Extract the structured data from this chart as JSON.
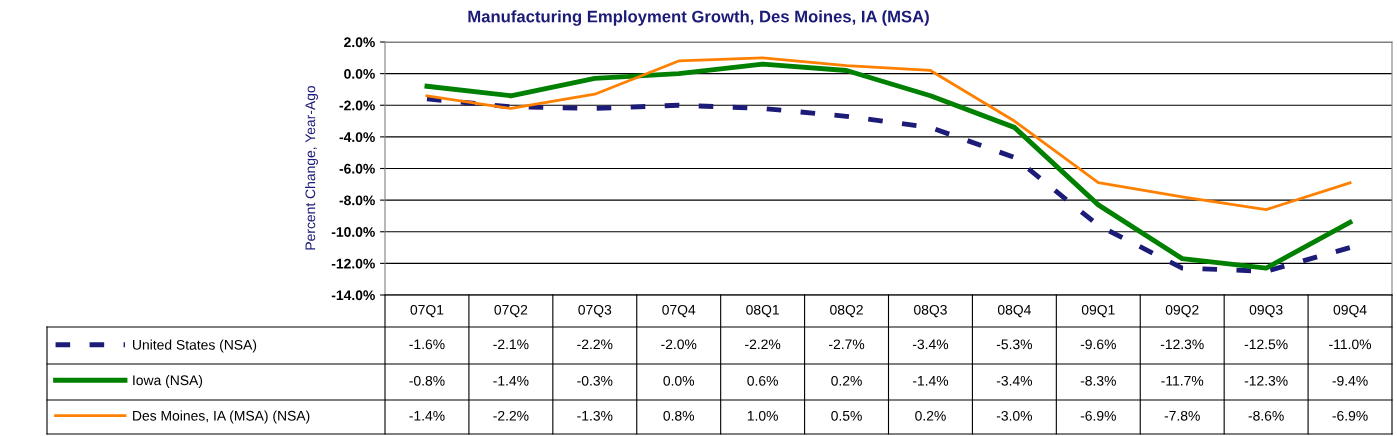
{
  "chart_data": {
    "type": "line",
    "title": "Manufacturing Employment Growth, Des Moines, IA (MSA)",
    "ylabel": "Percent Change, Year-Ago",
    "categories": [
      "07Q1",
      "07Q2",
      "07Q3",
      "07Q4",
      "08Q1",
      "08Q2",
      "08Q3",
      "08Q4",
      "09Q1",
      "09Q2",
      "09Q3",
      "09Q4"
    ],
    "series": [
      {
        "name": "United States (NSA)",
        "color": "#1c1c78",
        "line_style": "dashed",
        "values": [
          -1.6,
          -2.1,
          -2.2,
          -2.0,
          -2.2,
          -2.7,
          -3.4,
          -5.3,
          -9.6,
          -12.3,
          -12.5,
          -11.0
        ],
        "value_labels": [
          "-1.6%",
          "-2.1%",
          "-2.2%",
          "-2.0%",
          "-2.2%",
          "-2.7%",
          "-3.4%",
          "-5.3%",
          "-9.6%",
          "-12.3%",
          "-12.5%",
          "-11.0%"
        ]
      },
      {
        "name": "Iowa (NSA)",
        "color": "#008000",
        "line_style": "solid",
        "values": [
          -0.8,
          -1.4,
          -0.3,
          0.0,
          0.6,
          0.2,
          -1.4,
          -3.4,
          -8.3,
          -11.7,
          -12.3,
          -9.4
        ],
        "value_labels": [
          "-0.8%",
          "-1.4%",
          "-0.3%",
          "0.0%",
          "0.6%",
          "0.2%",
          "-1.4%",
          "-3.4%",
          "-8.3%",
          "-11.7%",
          "-12.3%",
          "-9.4%"
        ]
      },
      {
        "name": "Des Moines, IA (MSA) (NSA)",
        "color": "#ff8000",
        "line_style": "solid",
        "values": [
          -1.4,
          -2.2,
          -1.3,
          0.8,
          1.0,
          0.5,
          0.2,
          -3.0,
          -6.9,
          -7.8,
          -8.6,
          -6.9
        ],
        "value_labels": [
          "-1.4%",
          "-2.2%",
          "-1.3%",
          "0.8%",
          "1.0%",
          "0.5%",
          "0.2%",
          "-3.0%",
          "-6.9%",
          "-7.8%",
          "-8.6%",
          "-6.9%"
        ]
      }
    ],
    "ylim": [
      -14,
      2
    ],
    "yticks": [
      {
        "value": -14,
        "label": "-14.0%"
      },
      {
        "value": -12,
        "label": "-12.0%"
      },
      {
        "value": -10,
        "label": "-10.0%"
      },
      {
        "value": -8,
        "label": "-8.0%"
      },
      {
        "value": -6,
        "label": "-6.0%"
      },
      {
        "value": -4,
        "label": "-4.0%"
      },
      {
        "value": -2,
        "label": "-2.0%"
      },
      {
        "value": 0,
        "label": "0.0%"
      },
      {
        "value": 2,
        "label": "2.0%"
      }
    ],
    "grid": "y",
    "marker": "none",
    "legend": "bottom left"
  }
}
